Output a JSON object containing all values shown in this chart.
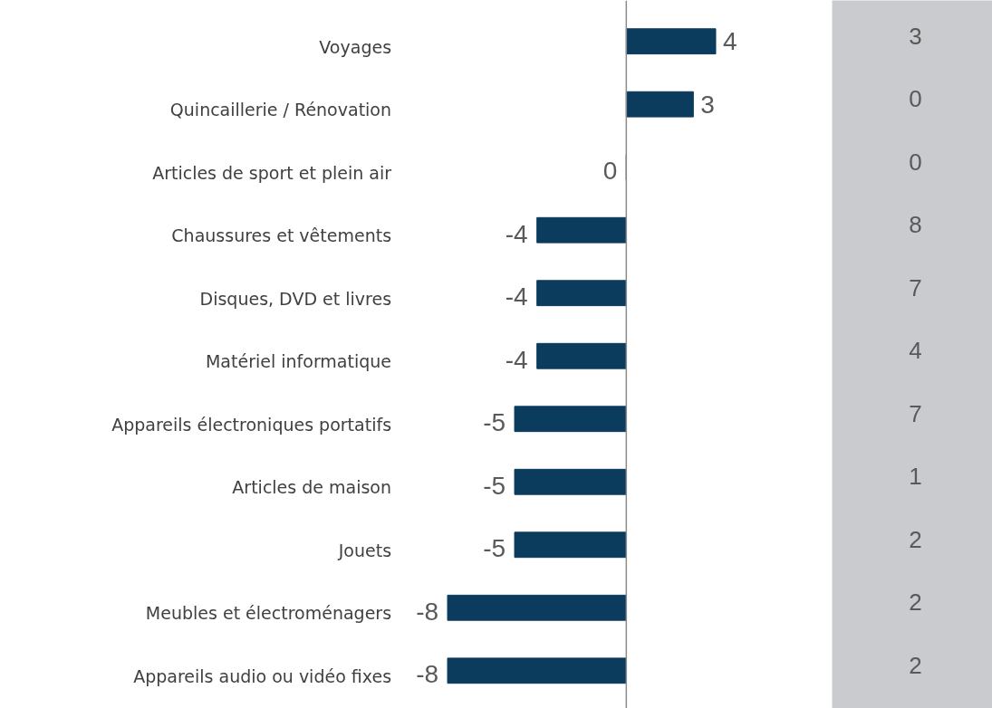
{
  "chart_data": [
    {
      "type": "bar",
      "orientation": "horizontal",
      "categories": [
        "Voyages",
        "Quincaillerie / Rénovation",
        "Articles de sport et plein air",
        "Chaussures et vêtements",
        "Disques, DVD et livres",
        "Matériel informatique",
        "Appareils électroniques portatifs",
        "Articles de maison",
        "Jouets",
        "Meubles et électroménagers",
        "Appareils audio ou vidéo fixes"
      ],
      "values": [
        4,
        3,
        0,
        -4,
        -4,
        -4,
        -5,
        -5,
        -5,
        -8,
        -8
      ],
      "color": "#0b3c5d",
      "data_labels": true,
      "grid": false
    },
    {
      "type": "other",
      "categories": [
        null,
        null,
        null,
        null,
        null,
        null,
        null,
        null,
        null,
        null,
        null
      ],
      "values": [
        3,
        0,
        0,
        8,
        7,
        4,
        7,
        1,
        2,
        2,
        2
      ],
      "data_labels": true
    }
  ]
}
